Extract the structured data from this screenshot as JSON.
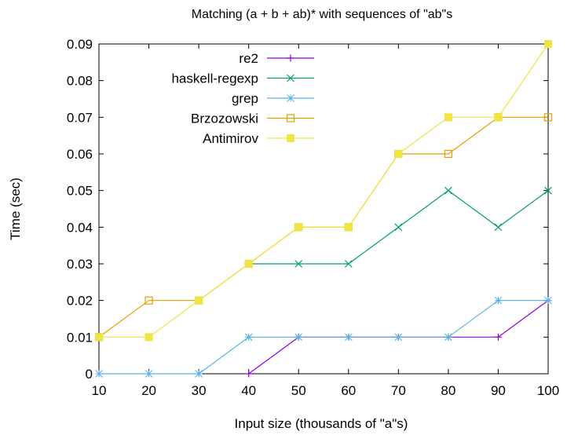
{
  "chart_data": {
    "type": "line",
    "title": "Matching (a + b + ab)* with sequences of \"ab\"s",
    "xlabel": "Input size (thousands of \"a\"s)",
    "ylabel": "Time (sec)",
    "xlim": [
      10,
      100
    ],
    "ylim": [
      0,
      0.09
    ],
    "x_ticks": [
      10,
      20,
      30,
      40,
      50,
      60,
      70,
      80,
      90,
      100
    ],
    "y_ticks": [
      "0",
      "0.01",
      "0.02",
      "0.03",
      "0.04",
      "0.05",
      "0.06",
      "0.07",
      "0.08",
      "0.09"
    ],
    "grid": false,
    "legend_position": "top-left",
    "series": [
      {
        "name": "re2",
        "color": "#9400d3",
        "marker": "plus",
        "x": [
          40,
          50,
          60,
          70,
          80,
          90,
          100
        ],
        "values": [
          0,
          0.01,
          0.01,
          0.01,
          0.01,
          0.01,
          0.02
        ]
      },
      {
        "name": "haskell-regexp",
        "color": "#009e73",
        "marker": "cross",
        "x": [
          40,
          50,
          60,
          70,
          80,
          90,
          100
        ],
        "values": [
          0.03,
          0.03,
          0.03,
          0.04,
          0.05,
          0.04,
          0.05
        ]
      },
      {
        "name": "grep",
        "color": "#56b4e9",
        "marker": "star",
        "x": [
          10,
          20,
          30,
          40,
          50,
          60,
          70,
          80,
          90,
          100
        ],
        "values": [
          0,
          0,
          0,
          0.01,
          0.01,
          0.01,
          0.01,
          0.01,
          0.02,
          0.02
        ]
      },
      {
        "name": "Brzozowski",
        "color": "#e69f00",
        "marker": "open-square",
        "x": [
          10,
          20,
          30,
          40,
          50,
          60,
          70,
          80,
          90,
          100
        ],
        "values": [
          0.01,
          0.02,
          0.02,
          0.03,
          0.04,
          0.04,
          0.06,
          0.06,
          0.07,
          0.07
        ]
      },
      {
        "name": "Antimirov",
        "color": "#f0e442",
        "marker": "filled-square",
        "x": [
          10,
          20,
          30,
          40,
          50,
          60,
          70,
          80,
          90,
          100
        ],
        "values": [
          0.01,
          0.01,
          0.02,
          0.03,
          0.04,
          0.04,
          0.06,
          0.07,
          0.07,
          0.09
        ]
      }
    ]
  }
}
